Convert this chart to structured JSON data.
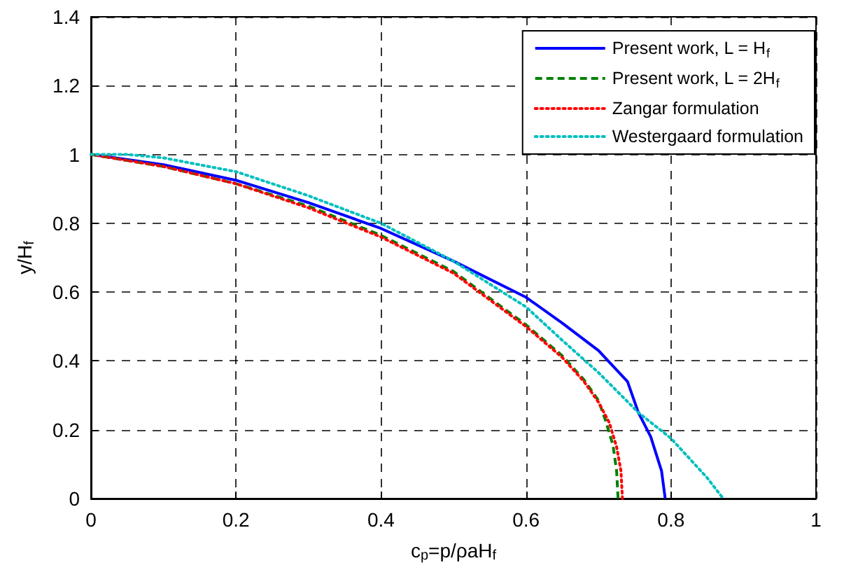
{
  "chart_data": {
    "type": "line",
    "xlabel": "c$_{p}$=p/ρaH$_{f}$",
    "ylabel": "y/H$_{f}$",
    "xlim": [
      0,
      1
    ],
    "xticks": [
      0,
      0.2,
      0.4,
      0.6,
      0.8,
      1
    ],
    "ylim": [
      0,
      1.4
    ],
    "yticks": [
      0,
      0.2,
      0.4,
      0.6,
      0.8,
      1,
      1.2,
      1.4
    ],
    "grid": true,
    "legend": "top right",
    "marker": "none",
    "series": [
      {
        "name": "Present work, L = H$_{f}$",
        "color": "#0000ff",
        "line_style": "solid",
        "x": [
          0,
          0.1,
          0.2,
          0.3,
          0.4,
          0.5,
          0.6,
          0.65,
          0.7,
          0.74,
          0.755,
          0.772,
          0.787,
          0.792
        ],
        "values": [
          1,
          0.97,
          0.925,
          0.86,
          0.785,
          0.69,
          0.585,
          0.51,
          0.43,
          0.34,
          0.25,
          0.18,
          0.08,
          0
        ]
      },
      {
        "name": "Present work, L = 2H$_{f}$",
        "color": "#008000",
        "line_style": "dashed",
        "x": [
          0,
          0.1,
          0.2,
          0.3,
          0.4,
          0.5,
          0.6,
          0.65,
          0.68,
          0.7,
          0.71,
          0.72,
          0.725,
          0.727
        ],
        "values": [
          1,
          0.965,
          0.915,
          0.85,
          0.765,
          0.66,
          0.505,
          0.415,
          0.345,
          0.285,
          0.225,
          0.155,
          0.08,
          0
        ]
      },
      {
        "name": "Zangar formulation",
        "color": "#ff0000",
        "line_style": "dotted",
        "x": [
          0,
          0.1,
          0.2,
          0.3,
          0.4,
          0.5,
          0.6,
          0.65,
          0.68,
          0.7,
          0.715,
          0.725,
          0.731,
          0.733
        ],
        "values": [
          1,
          0.965,
          0.915,
          0.845,
          0.76,
          0.655,
          0.5,
          0.41,
          0.34,
          0.28,
          0.22,
          0.15,
          0.08,
          0
        ]
      },
      {
        "name": "Westergaard formulation",
        "color": "#00bfbf",
        "line_style": "dotted",
        "x": [
          0,
          0.05,
          0.1,
          0.2,
          0.3,
          0.4,
          0.5,
          0.6,
          0.65,
          0.7,
          0.755,
          0.8,
          0.85,
          0.872
        ],
        "values": [
          1,
          1,
          0.99,
          0.95,
          0.88,
          0.8,
          0.69,
          0.557,
          0.46,
          0.366,
          0.25,
          0.175,
          0.06,
          0
        ]
      }
    ]
  }
}
